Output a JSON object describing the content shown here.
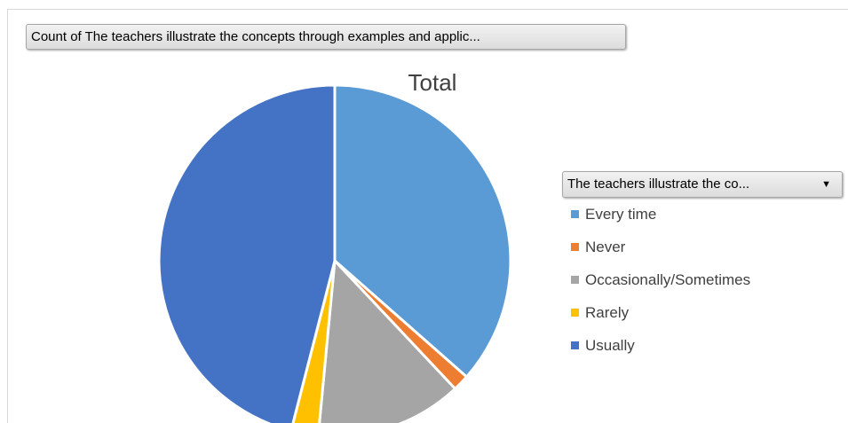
{
  "pivot": {
    "value_field_label": "Count of The teachers illustrate the concepts through examples and applic...",
    "legend_field_label": "The teachers illustrate the co...",
    "legend_dropdown_icon": "chevron-down-icon"
  },
  "chart_data": {
    "type": "pie",
    "title": "Total",
    "legend_position": "right",
    "slices": [
      {
        "label": "Every time",
        "value": 36.5,
        "color": "#5B9BD5"
      },
      {
        "label": "Never",
        "value": 1.5,
        "color": "#ED7D31"
      },
      {
        "label": "Occasionally/Sometimes",
        "value": 13.5,
        "color": "#A5A5A5"
      },
      {
        "label": "Rarely",
        "value": 2.5,
        "color": "#FFC000"
      },
      {
        "label": "Usually",
        "value": 46.0,
        "color": "#4472C4"
      }
    ]
  }
}
